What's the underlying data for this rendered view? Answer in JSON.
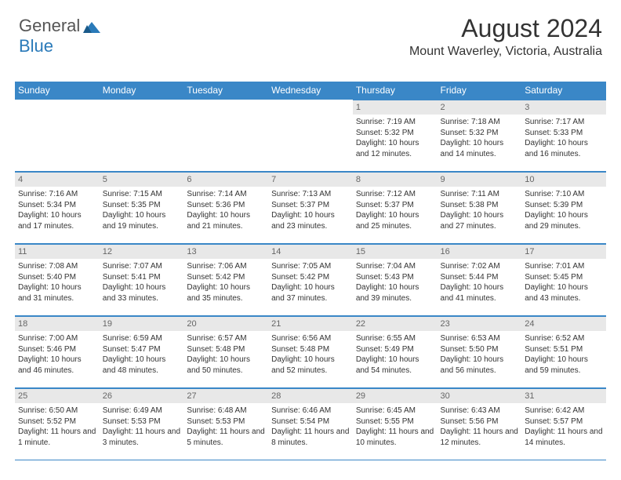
{
  "logo": {
    "text1": "General",
    "text2": "Blue"
  },
  "header": {
    "title": "August 2024",
    "location": "Mount Waverley, Victoria, Australia"
  },
  "colors": {
    "header_bg": "#3a87c7",
    "header_fg": "#ffffff",
    "daynum_bg": "#e8e8e8",
    "border": "#3a87c7"
  },
  "weekdays": [
    "Sunday",
    "Monday",
    "Tuesday",
    "Wednesday",
    "Thursday",
    "Friday",
    "Saturday"
  ],
  "weeks": [
    [
      null,
      null,
      null,
      null,
      {
        "n": "1",
        "sr": "7:19 AM",
        "ss": "5:32 PM",
        "dl": "10 hours and 12 minutes."
      },
      {
        "n": "2",
        "sr": "7:18 AM",
        "ss": "5:32 PM",
        "dl": "10 hours and 14 minutes."
      },
      {
        "n": "3",
        "sr": "7:17 AM",
        "ss": "5:33 PM",
        "dl": "10 hours and 16 minutes."
      }
    ],
    [
      {
        "n": "4",
        "sr": "7:16 AM",
        "ss": "5:34 PM",
        "dl": "10 hours and 17 minutes."
      },
      {
        "n": "5",
        "sr": "7:15 AM",
        "ss": "5:35 PM",
        "dl": "10 hours and 19 minutes."
      },
      {
        "n": "6",
        "sr": "7:14 AM",
        "ss": "5:36 PM",
        "dl": "10 hours and 21 minutes."
      },
      {
        "n": "7",
        "sr": "7:13 AM",
        "ss": "5:37 PM",
        "dl": "10 hours and 23 minutes."
      },
      {
        "n": "8",
        "sr": "7:12 AM",
        "ss": "5:37 PM",
        "dl": "10 hours and 25 minutes."
      },
      {
        "n": "9",
        "sr": "7:11 AM",
        "ss": "5:38 PM",
        "dl": "10 hours and 27 minutes."
      },
      {
        "n": "10",
        "sr": "7:10 AM",
        "ss": "5:39 PM",
        "dl": "10 hours and 29 minutes."
      }
    ],
    [
      {
        "n": "11",
        "sr": "7:08 AM",
        "ss": "5:40 PM",
        "dl": "10 hours and 31 minutes."
      },
      {
        "n": "12",
        "sr": "7:07 AM",
        "ss": "5:41 PM",
        "dl": "10 hours and 33 minutes."
      },
      {
        "n": "13",
        "sr": "7:06 AM",
        "ss": "5:42 PM",
        "dl": "10 hours and 35 minutes."
      },
      {
        "n": "14",
        "sr": "7:05 AM",
        "ss": "5:42 PM",
        "dl": "10 hours and 37 minutes."
      },
      {
        "n": "15",
        "sr": "7:04 AM",
        "ss": "5:43 PM",
        "dl": "10 hours and 39 minutes."
      },
      {
        "n": "16",
        "sr": "7:02 AM",
        "ss": "5:44 PM",
        "dl": "10 hours and 41 minutes."
      },
      {
        "n": "17",
        "sr": "7:01 AM",
        "ss": "5:45 PM",
        "dl": "10 hours and 43 minutes."
      }
    ],
    [
      {
        "n": "18",
        "sr": "7:00 AM",
        "ss": "5:46 PM",
        "dl": "10 hours and 46 minutes."
      },
      {
        "n": "19",
        "sr": "6:59 AM",
        "ss": "5:47 PM",
        "dl": "10 hours and 48 minutes."
      },
      {
        "n": "20",
        "sr": "6:57 AM",
        "ss": "5:48 PM",
        "dl": "10 hours and 50 minutes."
      },
      {
        "n": "21",
        "sr": "6:56 AM",
        "ss": "5:48 PM",
        "dl": "10 hours and 52 minutes."
      },
      {
        "n": "22",
        "sr": "6:55 AM",
        "ss": "5:49 PM",
        "dl": "10 hours and 54 minutes."
      },
      {
        "n": "23",
        "sr": "6:53 AM",
        "ss": "5:50 PM",
        "dl": "10 hours and 56 minutes."
      },
      {
        "n": "24",
        "sr": "6:52 AM",
        "ss": "5:51 PM",
        "dl": "10 hours and 59 minutes."
      }
    ],
    [
      {
        "n": "25",
        "sr": "6:50 AM",
        "ss": "5:52 PM",
        "dl": "11 hours and 1 minute."
      },
      {
        "n": "26",
        "sr": "6:49 AM",
        "ss": "5:53 PM",
        "dl": "11 hours and 3 minutes."
      },
      {
        "n": "27",
        "sr": "6:48 AM",
        "ss": "5:53 PM",
        "dl": "11 hours and 5 minutes."
      },
      {
        "n": "28",
        "sr": "6:46 AM",
        "ss": "5:54 PM",
        "dl": "11 hours and 8 minutes."
      },
      {
        "n": "29",
        "sr": "6:45 AM",
        "ss": "5:55 PM",
        "dl": "11 hours and 10 minutes."
      },
      {
        "n": "30",
        "sr": "6:43 AM",
        "ss": "5:56 PM",
        "dl": "11 hours and 12 minutes."
      },
      {
        "n": "31",
        "sr": "6:42 AM",
        "ss": "5:57 PM",
        "dl": "11 hours and 14 minutes."
      }
    ]
  ],
  "labels": {
    "sunrise": "Sunrise:",
    "sunset": "Sunset:",
    "daylight": "Daylight:"
  }
}
